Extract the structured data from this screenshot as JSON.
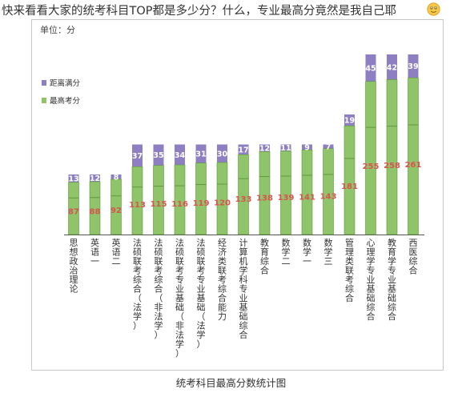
{
  "headline": "快来看看大家的统考科目TOP都是多少分？什么，专业最高分竟然是我自己耶",
  "emoji_icon": "smiling-face-emoji-icon",
  "caption": "统考科目最高分数统计图",
  "colors": {
    "top_score": "#8fc46a",
    "top_score_stroke": "#5f9a3a",
    "gap": "#8d7fc1",
    "gap_label": "#ffffff",
    "score_label": "#d9534f",
    "axis": "#555555"
  },
  "chart_data": {
    "type": "bar",
    "stacked": true,
    "unit_label": "单位：分",
    "categories": [
      "思想政治理论",
      "英语一",
      "英语二",
      "法硕联考综合（法学）",
      "法硕联考综合（非法学）",
      "法硕联考专业基础（非法学）",
      "法硕联考专业基础（法学）",
      "经济类联考综合能力",
      "计算机学科专业基础综合",
      "教育综合",
      "数学二",
      "数学一",
      "数学三",
      "管理类联考综合",
      "心理学专业基础综合",
      "教育学专业基础综合",
      "西医综合"
    ],
    "series": [
      {
        "name": "最高考分",
        "values": [
          87,
          88,
          92,
          113,
          115,
          116,
          119,
          120,
          133,
          138,
          139,
          141,
          143,
          181,
          255,
          258,
          261
        ]
      },
      {
        "name": "距离满分",
        "values": [
          13,
          12,
          8,
          37,
          35,
          34,
          31,
          30,
          17,
          12,
          11,
          9,
          7,
          19,
          45,
          42,
          39
        ]
      }
    ],
    "legend_position": "left",
    "grid": false
  }
}
